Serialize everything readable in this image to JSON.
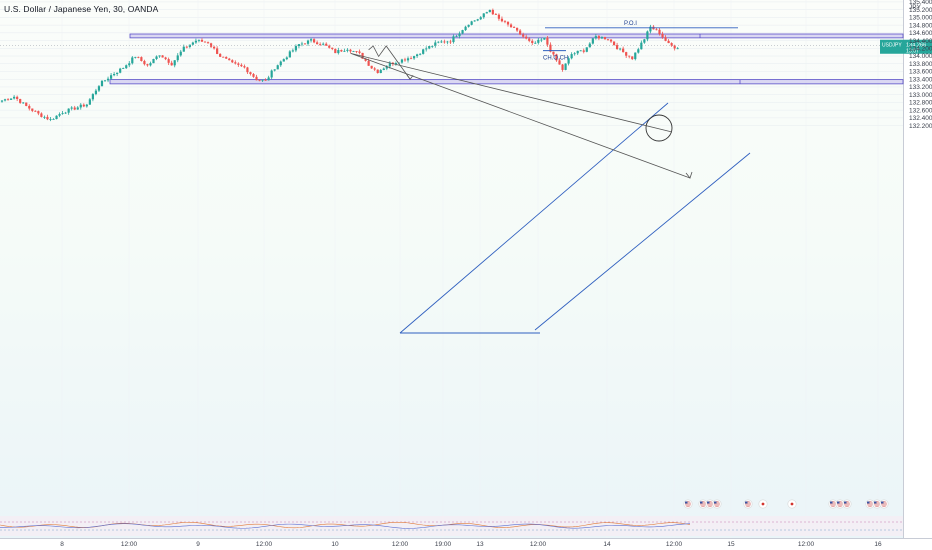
{
  "title": "U.S. Dollar / Japanese Yen, 30, OANDA",
  "currency_label": "JPY",
  "price_badge": {
    "symbol": "USDJPY",
    "price": "134.266",
    "countdown": "13:07",
    "color": "#26a69a"
  },
  "colors": {
    "up": "#26a69a",
    "down": "#ef5350",
    "zone_fill": "#c9c3ee",
    "zone_stroke": "#5a4fc9",
    "line": "#2f5fbf",
    "bg_top": "#fbfdfa",
    "bg_bottom": "#eaf4f8"
  },
  "annotations": {
    "poi": "P.O.I",
    "choch": "CH.O.CH"
  },
  "chart_data": {
    "type": "candlestick",
    "title": "U.S. Dollar / Japanese Yen, 30, OANDA",
    "y_unit": "JPY",
    "ylim": [
      122.15,
      135.45
    ],
    "y_ticks": [
      "135.400",
      "135.200",
      "135.000",
      "134.800",
      "134.600",
      "134.400",
      "134.200",
      "134.000",
      "133.800",
      "133.600",
      "133.400",
      "133.200",
      "133.000",
      "132.800",
      "132.600",
      "132.400",
      "132.200"
    ],
    "x_ticks": [
      "8",
      "12:00",
      "9",
      "12:00",
      "10",
      "12:00",
      "19:00",
      "13",
      "12:00",
      "14",
      "12:00",
      "15",
      "12:00",
      "16"
    ],
    "last_price": 134.266,
    "zones": [
      {
        "name": "resistance",
        "from": 134.47,
        "to": 134.57
      },
      {
        "name": "support",
        "from": 133.28,
        "to": 133.39
      }
    ],
    "poi_level": 134.73,
    "choch_level": 134.14,
    "path_anchors": [
      [
        0,
        132.85
      ],
      [
        4,
        132.95
      ],
      [
        8,
        132.7
      ],
      [
        12,
        132.5
      ],
      [
        16,
        132.35
      ],
      [
        20,
        132.55
      ],
      [
        24,
        132.65
      ],
      [
        28,
        132.75
      ],
      [
        32,
        133.25
      ],
      [
        36,
        133.5
      ],
      [
        40,
        133.7
      ],
      [
        44,
        134.0
      ],
      [
        48,
        133.75
      ],
      [
        52,
        134.05
      ],
      [
        56,
        133.8
      ],
      [
        60,
        134.2
      ],
      [
        64,
        134.4
      ],
      [
        68,
        134.35
      ],
      [
        72,
        134.0
      ],
      [
        76,
        133.8
      ],
      [
        80,
        133.7
      ],
      [
        84,
        133.4
      ],
      [
        87,
        133.35
      ],
      [
        90,
        133.7
      ],
      [
        94,
        134.0
      ],
      [
        98,
        134.3
      ],
      [
        102,
        134.4
      ],
      [
        106,
        134.3
      ],
      [
        110,
        134.1
      ],
      [
        114,
        134.2
      ],
      [
        118,
        134.05
      ],
      [
        122,
        133.7
      ],
      [
        124,
        133.6
      ],
      [
        128,
        133.8
      ],
      [
        132,
        133.9
      ],
      [
        136,
        134.0
      ],
      [
        140,
        134.2
      ],
      [
        144,
        134.35
      ],
      [
        148,
        134.4
      ],
      [
        150,
        134.55
      ],
      [
        154,
        134.85
      ],
      [
        158,
        135.0
      ],
      [
        161,
        135.2
      ],
      [
        164,
        134.95
      ],
      [
        168,
        134.75
      ],
      [
        172,
        134.5
      ],
      [
        175,
        134.3
      ],
      [
        179,
        134.45
      ],
      [
        182,
        134.0
      ],
      [
        185,
        133.65
      ],
      [
        188,
        134.05
      ],
      [
        192,
        134.15
      ],
      [
        196,
        134.5
      ],
      [
        200,
        134.45
      ],
      [
        204,
        134.15
      ],
      [
        208,
        133.95
      ],
      [
        212,
        134.45
      ],
      [
        214,
        134.75
      ],
      [
        217,
        134.6
      ],
      [
        220,
        134.3
      ],
      [
        223,
        134.2
      ]
    ],
    "forecast_path": [
      [
        121.0,
        134.16
      ],
      [
        122.5,
        134.26
      ],
      [
        124.3,
        133.99
      ],
      [
        126.8,
        134.26
      ],
      [
        134.7,
        133.4
      ]
    ],
    "secondary_path": [
      [
        113.6,
        134.2
      ],
      [
        115.1,
        134.07
      ]
    ]
  }
}
